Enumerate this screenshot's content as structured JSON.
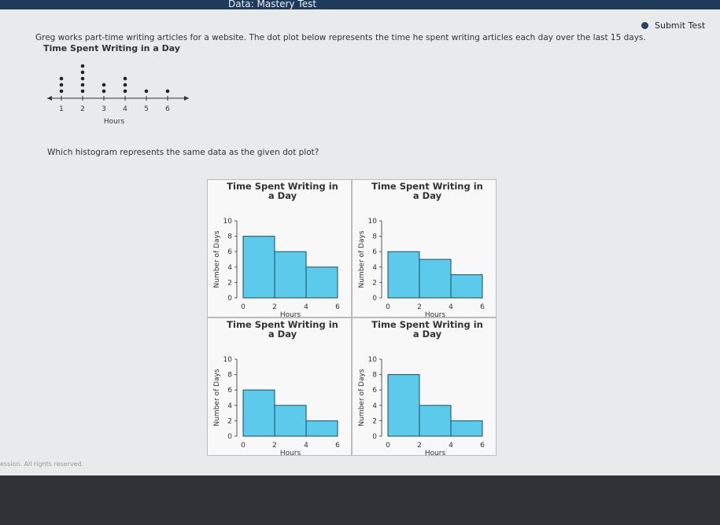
{
  "header": {
    "test_title": "Data: Mastery Test",
    "submit": "Submit Test"
  },
  "question": {
    "prompt": "Greg works part-time writing articles for a website. The dot plot below represents the time he spent writing articles each day over the last 15 days.",
    "dot_plot": {
      "title": "Time Spent Writing in a Day",
      "x_label": "Hours",
      "ticks": [
        1,
        2,
        3,
        4,
        5,
        6
      ],
      "counts": [
        3,
        5,
        2,
        3,
        1,
        1
      ]
    },
    "ask": "Which histogram represents the same data as the given dot plot?"
  },
  "options": [
    {
      "title": "Time Spent Writing in a Day",
      "x_label": "Hours",
      "y_label": "Number of Days",
      "bins": [
        0,
        2,
        4,
        6
      ],
      "counts": [
        8,
        6,
        4
      ],
      "ylim": [
        0,
        10
      ],
      "yticks": [
        0,
        2,
        4,
        6,
        8,
        10
      ]
    },
    {
      "title": "Time Spent Writing in a Day",
      "x_label": "Hours",
      "y_label": "Number of Days",
      "bins": [
        0,
        2,
        4,
        6
      ],
      "counts": [
        6,
        5,
        3
      ],
      "ylim": [
        0,
        10
      ],
      "yticks": [
        0,
        2,
        4,
        6,
        8,
        10
      ]
    },
    {
      "title": "Time Spent Writing in a Day",
      "x_label": "Hours",
      "y_label": "Number of Days",
      "bins": [
        0,
        2,
        4,
        6
      ],
      "counts": [
        6,
        4,
        2
      ],
      "ylim": [
        0,
        10
      ],
      "yticks": [
        0,
        2,
        4,
        6,
        8,
        10
      ]
    },
    {
      "title": "Time Spent Writing in a Day",
      "x_label": "Hours",
      "y_label": "Number of Days",
      "bins": [
        0,
        2,
        4,
        6
      ],
      "counts": [
        8,
        4,
        2
      ],
      "ylim": [
        0,
        10
      ],
      "yticks": [
        0,
        2,
        4,
        6,
        8,
        10
      ]
    }
  ],
  "footer": "ession. All rights reserved."
}
